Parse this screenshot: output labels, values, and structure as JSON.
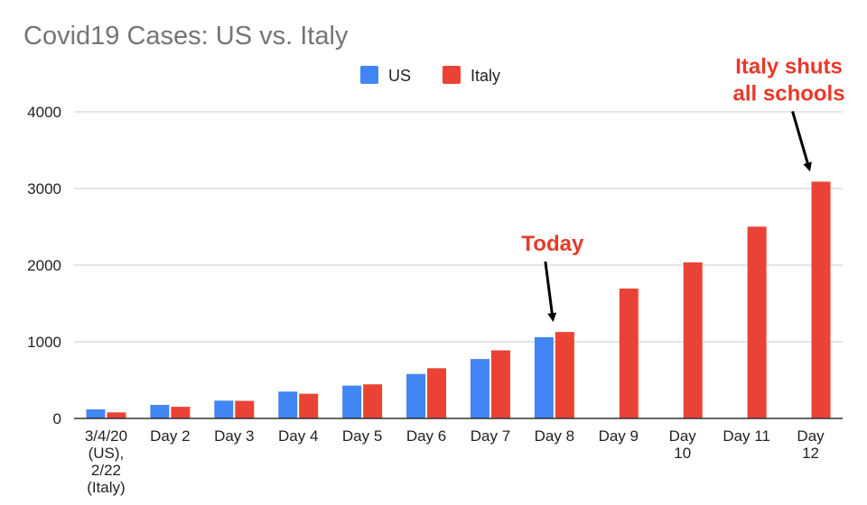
{
  "chart_data": {
    "type": "bar",
    "title": "Covid19 Cases: US vs. Italy",
    "categories": [
      [
        "3/4/20",
        "(US),",
        "2/22",
        "(Italy)"
      ],
      [
        "Day 2"
      ],
      [
        "Day 3"
      ],
      [
        "Day 4"
      ],
      [
        "Day 5"
      ],
      [
        "Day 6"
      ],
      [
        "Day 7"
      ],
      [
        "Day 8"
      ],
      [
        "Day 9"
      ],
      [
        "Day",
        "10"
      ],
      [
        "Day 11"
      ],
      [
        "Day",
        "12"
      ]
    ],
    "series": [
      {
        "name": "US",
        "color": "#4285f4",
        "values": [
          118,
          176,
          232,
          350,
          428,
          580,
          775,
          1060,
          null,
          null,
          null,
          null
        ]
      },
      {
        "name": "Italy",
        "color": "#ea4335",
        "values": [
          79,
          152,
          229,
          322,
          445,
          655,
          888,
          1128,
          1694,
          2036,
          2502,
          3089
        ]
      }
    ],
    "ylim": [
      0,
      4000
    ],
    "yticks": [
      0,
      1000,
      2000,
      3000,
      4000
    ],
    "grid": true,
    "legend_position": "top-center",
    "annotations": [
      {
        "lines": [
          "Today"
        ],
        "category_index": 7
      },
      {
        "lines": [
          "Italy shuts",
          "all schools"
        ],
        "category_index": 11
      }
    ]
  }
}
